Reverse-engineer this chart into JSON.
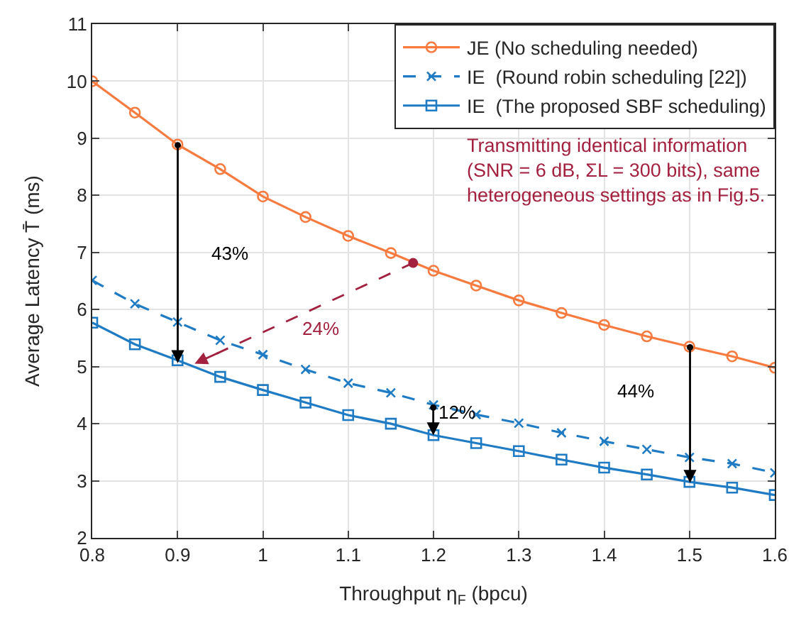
{
  "chart_data": {
    "type": "line",
    "xlabel": "Throughput η$_{F}$ (bpcu)",
    "ylabel": "Average Latency T̄ (ms)",
    "x": [
      0.8,
      0.85,
      0.9,
      0.95,
      1.0,
      1.05,
      1.1,
      1.15,
      1.2,
      1.25,
      1.3,
      1.35,
      1.4,
      1.45,
      1.5,
      1.55,
      1.6
    ],
    "series": [
      {
        "name": "JE (No scheduling needed)",
        "color": "#f77a3f",
        "marker": "circle",
        "line_style": "solid",
        "values": [
          10.0,
          9.45,
          8.89,
          8.46,
          7.98,
          7.62,
          7.29,
          6.99,
          6.68,
          6.42,
          6.16,
          5.94,
          5.73,
          5.53,
          5.35,
          5.18,
          4.98
        ]
      },
      {
        "name": "IE  (Round robin scheduling [22])",
        "color": "#1f7bc4",
        "marker": "cross",
        "line_style": "dashed",
        "values": [
          6.51,
          6.1,
          5.78,
          5.46,
          5.21,
          4.95,
          4.71,
          4.54,
          4.33,
          4.16,
          4.01,
          3.84,
          3.69,
          3.55,
          3.41,
          3.3,
          3.14
        ]
      },
      {
        "name": "IE  (The proposed SBF scheduling)",
        "color": "#1f7bc4",
        "marker": "square",
        "line_style": "solid",
        "values": [
          5.77,
          5.39,
          5.11,
          4.82,
          4.59,
          4.37,
          4.15,
          4.0,
          3.8,
          3.66,
          3.52,
          3.37,
          3.23,
          3.11,
          2.98,
          2.88,
          2.75
        ]
      }
    ],
    "xlim": [
      0.8,
      1.6
    ],
    "xticks": [
      0.8,
      0.9,
      1,
      1.1,
      1.2,
      1.3,
      1.4,
      1.5,
      1.6
    ],
    "ylim": [
      2,
      11
    ],
    "yticks": [
      2,
      3,
      4,
      5,
      6,
      7,
      8,
      9,
      10,
      11
    ],
    "grid": true,
    "legend": "top right",
    "annotations": [
      "43%",
      "24%",
      "12%",
      "44%",
      "Transmitting identical information\n(SNR = 6 dB, ΣL = 300 bits), same\nheterogeneous settings as in Fig.5."
    ]
  }
}
